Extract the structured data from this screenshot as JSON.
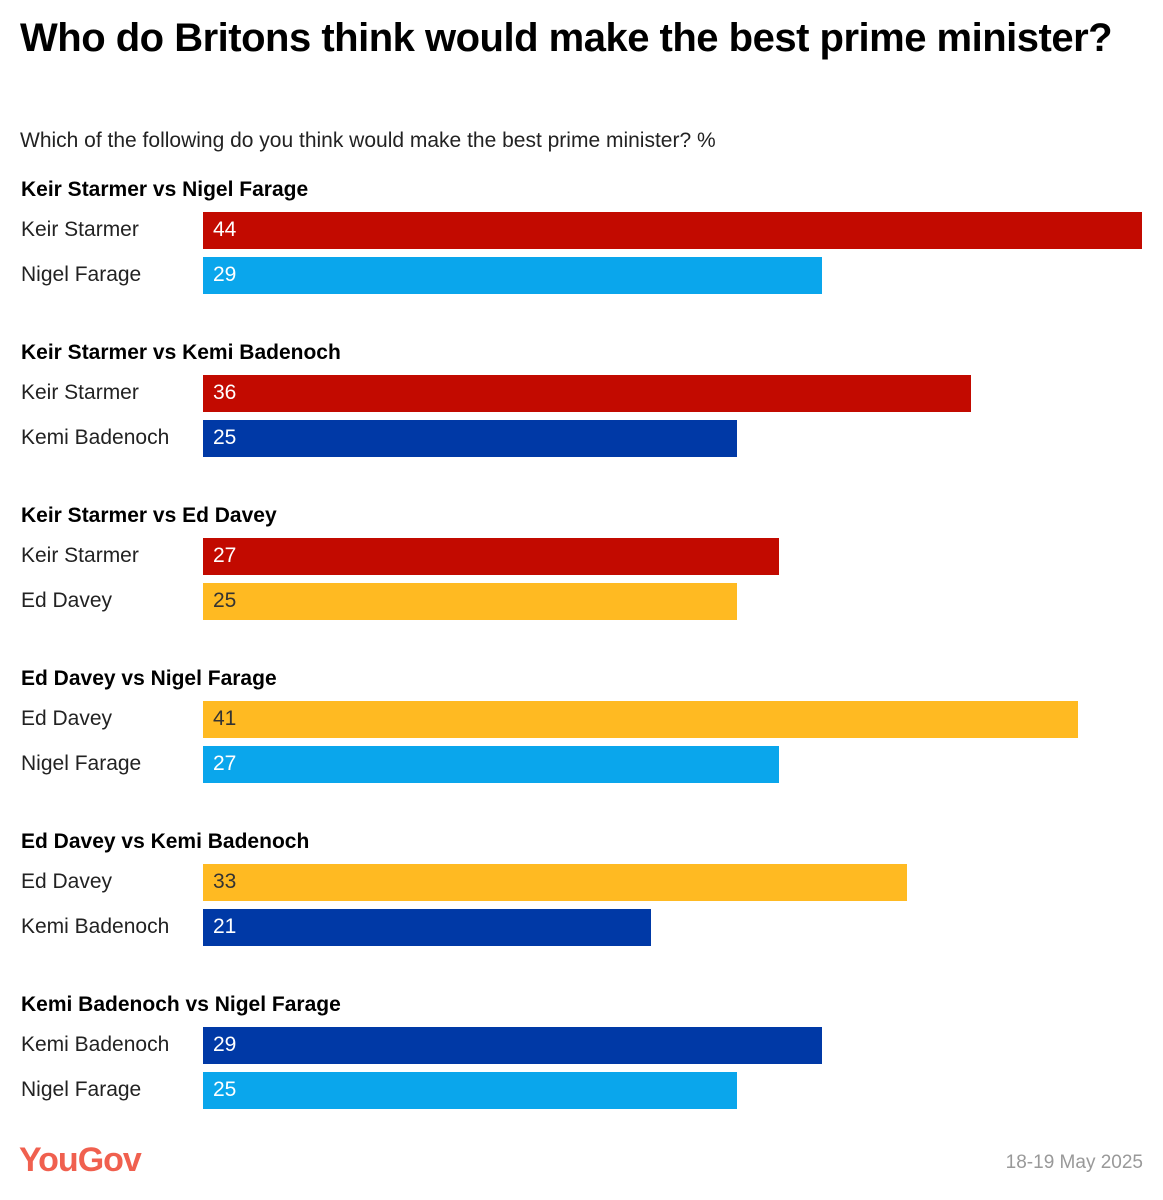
{
  "title": "Who do Britons think would make the best prime minister?",
  "subtitle": "Which of the following do you think would make the best prime minister? %",
  "footer": {
    "logo": "YouGov",
    "date": "18-19 May 2025"
  },
  "colors": {
    "Keir Starmer": "#c20a00",
    "Nigel Farage": "#0aa6ec",
    "Kemi Badenoch": "#0039a6",
    "Ed Davey": "#ffba22"
  },
  "chart_data": {
    "type": "bar",
    "orientation": "horizontal",
    "xlim": [
      0,
      44
    ],
    "groups": [
      {
        "title": "Keir Starmer vs Nigel Farage",
        "bars": [
          {
            "name": "Keir Starmer",
            "value": 44
          },
          {
            "name": "Nigel Farage",
            "value": 29
          }
        ]
      },
      {
        "title": "Keir Starmer vs Kemi Badenoch",
        "bars": [
          {
            "name": "Keir Starmer",
            "value": 36
          },
          {
            "name": "Kemi Badenoch",
            "value": 25
          }
        ]
      },
      {
        "title": "Keir Starmer vs Ed Davey",
        "bars": [
          {
            "name": "Keir Starmer",
            "value": 27
          },
          {
            "name": "Ed Davey",
            "value": 25
          }
        ]
      },
      {
        "title": "Ed Davey vs Nigel Farage",
        "bars": [
          {
            "name": "Ed Davey",
            "value": 41
          },
          {
            "name": "Nigel Farage",
            "value": 27
          }
        ]
      },
      {
        "title": "Ed Davey vs Kemi Badenoch",
        "bars": [
          {
            "name": "Ed Davey",
            "value": 33
          },
          {
            "name": "Kemi Badenoch",
            "value": 21
          }
        ]
      },
      {
        "title": "Kemi Badenoch vs Nigel Farage",
        "bars": [
          {
            "name": "Kemi Badenoch",
            "value": 29
          },
          {
            "name": "Nigel Farage",
            "value": 25
          }
        ]
      }
    ]
  }
}
